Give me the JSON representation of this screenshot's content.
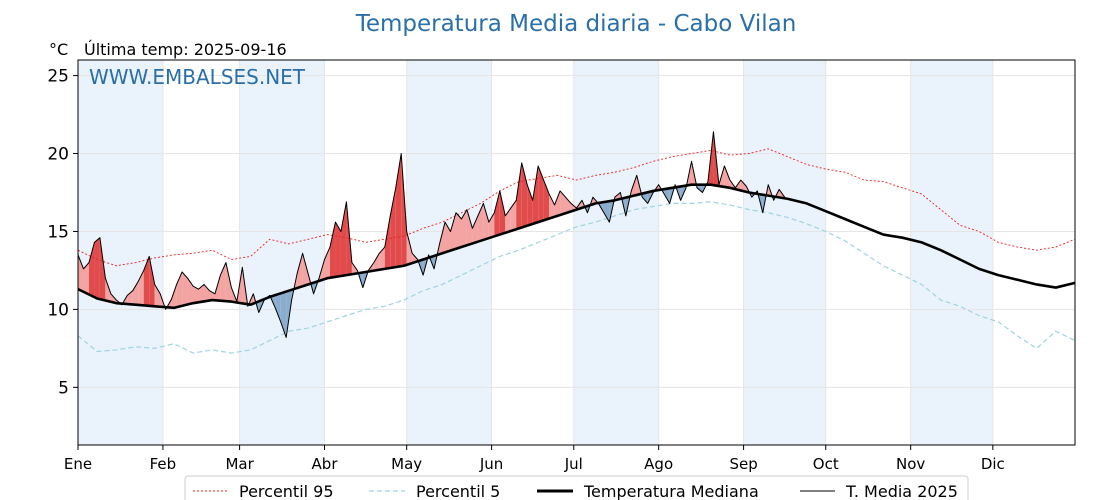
{
  "title": "Temperatura Media diaria - Cabo Vilan",
  "unit_label": "°C",
  "last_temp_label": "Última temp: 2025-09-16",
  "watermark": "WWW.EMBALSES.NET",
  "legend": {
    "p95": "Percentil 95",
    "p5": "Percentil 5",
    "median": "Temperatura Mediana",
    "current": "T. Media 2025"
  },
  "colors": {
    "title": "#2a6fa8",
    "p95": "#e8201e",
    "p5": "#9fd4e0",
    "median": "#000000",
    "current": "#000000",
    "above_fill": "#f4a3a3",
    "above_fill_strong": "#e24b4b",
    "below_fill": "#8aaccd",
    "band_shade": "#eaf3fb",
    "grid": "#e5e5e5"
  },
  "chart_data": {
    "type": "line",
    "title": "Temperatura Media diaria - Cabo Vilan",
    "ylabel": "°C",
    "ylim": [
      1.3,
      26
    ],
    "yticks": [
      5,
      10,
      15,
      20,
      25
    ],
    "month_labels": [
      "Ene",
      "Feb",
      "Mar",
      "Abr",
      "May",
      "Jun",
      "Jul",
      "Ago",
      "Sep",
      "Oct",
      "Nov",
      "Dic"
    ],
    "month_start_days": [
      1,
      32,
      60,
      91,
      121,
      152,
      182,
      213,
      244,
      274,
      305,
      335
    ],
    "days_in_year": 365,
    "grid": true,
    "legend_position": "bottom",
    "series": [
      {
        "name": "Temperatura Mediana",
        "days": [
          1,
          8,
          15,
          22,
          29,
          36,
          43,
          50,
          57,
          64,
          71,
          78,
          85,
          92,
          99,
          106,
          113,
          120,
          127,
          134,
          141,
          148,
          155,
          162,
          169,
          176,
          183,
          190,
          197,
          204,
          211,
          218,
          225,
          232,
          239,
          246,
          253,
          260,
          267,
          274,
          281,
          288,
          295,
          302,
          309,
          316,
          323,
          330,
          337,
          344,
          351,
          358,
          365
        ],
        "values": [
          11.3,
          10.7,
          10.4,
          10.3,
          10.2,
          10.1,
          10.4,
          10.6,
          10.5,
          10.3,
          10.8,
          11.2,
          11.6,
          12.0,
          12.2,
          12.4,
          12.6,
          12.8,
          13.2,
          13.6,
          14.0,
          14.4,
          14.8,
          15.2,
          15.6,
          16.0,
          16.4,
          16.8,
          17.0,
          17.3,
          17.6,
          17.8,
          18.0,
          18.0,
          17.8,
          17.5,
          17.3,
          17.1,
          16.8,
          16.3,
          15.8,
          15.3,
          14.8,
          14.6,
          14.3,
          13.8,
          13.2,
          12.6,
          12.2,
          11.9,
          11.6,
          11.4,
          11.7
        ]
      },
      {
        "name": "Percentil 95",
        "days": [
          1,
          8,
          15,
          22,
          29,
          36,
          43,
          50,
          57,
          64,
          71,
          78,
          85,
          92,
          99,
          106,
          113,
          120,
          127,
          134,
          141,
          148,
          155,
          162,
          169,
          176,
          183,
          190,
          197,
          204,
          211,
          218,
          225,
          232,
          239,
          246,
          253,
          260,
          267,
          274,
          281,
          288,
          295,
          302,
          309,
          316,
          323,
          330,
          337,
          344,
          351,
          358,
          365
        ],
        "values": [
          13.8,
          13.2,
          12.8,
          13.0,
          13.3,
          13.5,
          13.6,
          13.8,
          13.2,
          13.4,
          14.5,
          14.2,
          14.5,
          14.8,
          14.6,
          14.3,
          14.5,
          14.7,
          15.2,
          15.6,
          16.2,
          16.8,
          17.6,
          18.2,
          18.4,
          18.6,
          18.3,
          18.6,
          18.8,
          19.1,
          19.5,
          19.8,
          20.0,
          20.2,
          19.9,
          20.0,
          20.3,
          19.8,
          19.3,
          19.0,
          18.8,
          18.3,
          18.2,
          17.8,
          17.4,
          16.4,
          15.4,
          15.0,
          14.3,
          14.0,
          13.8,
          14.0,
          14.5
        ]
      },
      {
        "name": "Percentil 5",
        "days": [
          1,
          8,
          15,
          22,
          29,
          36,
          43,
          50,
          57,
          64,
          71,
          78,
          85,
          92,
          99,
          106,
          113,
          120,
          127,
          134,
          141,
          148,
          155,
          162,
          169,
          176,
          183,
          190,
          197,
          204,
          211,
          218,
          225,
          232,
          239,
          246,
          253,
          260,
          267,
          274,
          281,
          288,
          295,
          302,
          309,
          316,
          323,
          330,
          337,
          344,
          351,
          358,
          365
        ],
        "values": [
          8.3,
          7.3,
          7.4,
          7.6,
          7.5,
          7.8,
          7.2,
          7.4,
          7.2,
          7.4,
          8.0,
          8.6,
          8.8,
          9.2,
          9.6,
          10.0,
          10.2,
          10.6,
          11.2,
          11.6,
          12.2,
          12.8,
          13.4,
          13.8,
          14.3,
          14.8,
          15.3,
          15.6,
          16.0,
          16.4,
          16.6,
          16.8,
          16.8,
          16.9,
          16.7,
          16.4,
          16.2,
          15.9,
          15.5,
          15.0,
          14.4,
          13.6,
          12.8,
          12.2,
          11.6,
          10.6,
          10.2,
          9.6,
          9.2,
          8.3,
          7.5,
          8.6,
          8.0
        ]
      },
      {
        "name": "T. Media 2025",
        "days": [
          1,
          3,
          5,
          7,
          9,
          11,
          13,
          15,
          17,
          19,
          21,
          23,
          25,
          27,
          29,
          31,
          33,
          35,
          37,
          39,
          41,
          43,
          45,
          47,
          49,
          51,
          53,
          55,
          57,
          59,
          61,
          63,
          65,
          67,
          69,
          71,
          73,
          75,
          77,
          79,
          81,
          83,
          85,
          87,
          89,
          91,
          93,
          95,
          97,
          99,
          101,
          103,
          105,
          107,
          109,
          111,
          113,
          115,
          117,
          119,
          121,
          123,
          125,
          127,
          129,
          131,
          133,
          135,
          137,
          139,
          141,
          143,
          145,
          147,
          149,
          151,
          153,
          155,
          157,
          159,
          161,
          163,
          165,
          167,
          169,
          171,
          173,
          175,
          177,
          179,
          181,
          183,
          185,
          187,
          189,
          191,
          193,
          195,
          197,
          199,
          201,
          203,
          205,
          207,
          209,
          211,
          213,
          215,
          217,
          219,
          221,
          223,
          225,
          227,
          229,
          231,
          233,
          235,
          237,
          239,
          241,
          243,
          245,
          247,
          249,
          251,
          253,
          255,
          257,
          259
        ],
        "values": [
          13.5,
          12.6,
          13.0,
          14.3,
          14.6,
          12.0,
          11.0,
          10.6,
          10.3,
          10.9,
          11.2,
          11.8,
          12.5,
          13.4,
          11.6,
          11.0,
          10.0,
          10.6,
          11.6,
          12.4,
          12.0,
          11.5,
          11.3,
          11.6,
          11.2,
          11.0,
          12.2,
          13.0,
          11.4,
          10.5,
          12.7,
          10.2,
          11.0,
          9.8,
          10.6,
          10.9,
          10.1,
          9.2,
          8.2,
          10.6,
          12.3,
          13.6,
          12.3,
          11.0,
          12.0,
          13.2,
          14.0,
          15.6,
          15.0,
          16.9,
          13.0,
          12.5,
          11.4,
          12.5,
          13.0,
          13.6,
          14.0,
          16.0,
          17.8,
          20.0,
          15.0,
          13.6,
          13.2,
          12.2,
          13.5,
          12.6,
          14.2,
          15.6,
          15.0,
          16.2,
          15.8,
          16.4,
          15.2,
          16.0,
          16.8,
          15.6,
          16.2,
          17.6,
          16.0,
          16.5,
          17.0,
          19.4,
          18.0,
          17.0,
          19.2,
          18.3,
          17.4,
          16.7,
          17.6,
          17.2,
          16.8,
          16.5,
          17.0,
          16.2,
          17.2,
          16.8,
          16.2,
          15.6,
          17.2,
          17.5,
          16.0,
          17.6,
          18.6,
          17.2,
          16.8,
          17.5,
          18.0,
          17.4,
          16.8,
          18.0,
          17.0,
          17.8,
          19.5,
          17.8,
          17.5,
          18.2,
          21.4,
          18.0,
          19.2,
          18.3,
          17.8,
          18.3,
          17.9,
          17.2,
          17.6,
          16.2,
          18.0,
          17.0,
          17.7,
          17.2
        ]
      }
    ]
  }
}
